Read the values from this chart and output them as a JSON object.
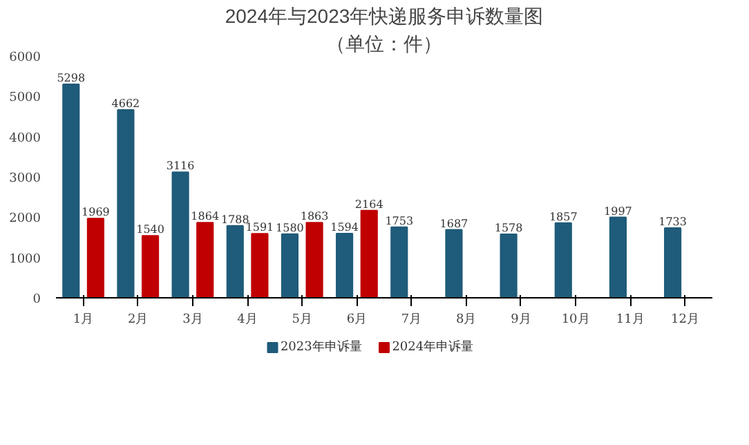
{
  "chart_data": {
    "type": "bar",
    "title": "2024年与2023年快递服务申诉数量图",
    "subtitle": "（单位：件）",
    "categories": [
      "1月",
      "2月",
      "3月",
      "4月",
      "5月",
      "6月",
      "7月",
      "8月",
      "9月",
      "10月",
      "11月",
      "12月"
    ],
    "series": [
      {
        "name": "2023年申诉量",
        "color": "#1f5b7a",
        "values": [
          5298,
          4662,
          3116,
          1788,
          1580,
          1594,
          1753,
          1687,
          1578,
          1857,
          1997,
          1733
        ]
      },
      {
        "name": "2024年申诉量",
        "color": "#c00000",
        "values": [
          1969,
          1540,
          1864,
          1591,
          1863,
          2164,
          null,
          null,
          null,
          null,
          null,
          null
        ]
      }
    ],
    "ylim": [
      0,
      6000
    ],
    "yticks": [
      0,
      1000,
      2000,
      3000,
      4000,
      5000,
      6000
    ],
    "grid": false,
    "legend": "bottom",
    "data_labels": true
  }
}
